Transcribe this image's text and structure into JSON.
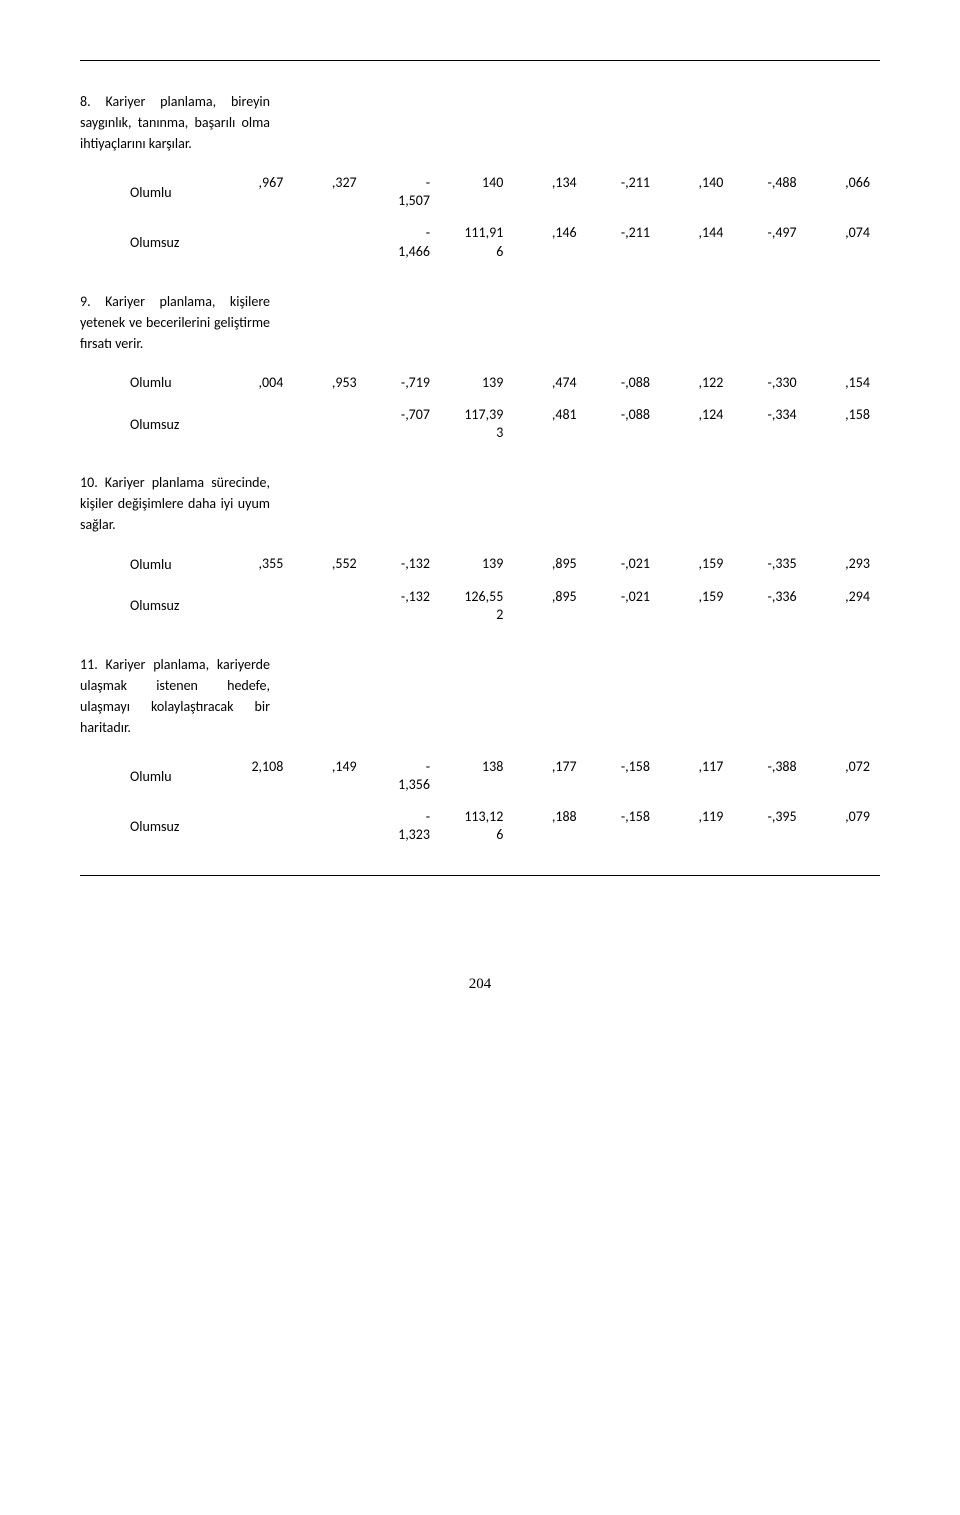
{
  "page_number": "204",
  "labels": {
    "olumlu": "Olumlu",
    "olumsuz": "Olumsuz"
  },
  "sections": [
    {
      "title": "8. Kariyer planlama, bireyin saygınlık, tanınma, başarılı olma ihtiyaçlarını karşılar.",
      "rows": [
        {
          "label": "olumlu",
          "cells": [
            ",967",
            ",327",
            "-\n1,507",
            "140",
            ",134",
            "-,211",
            ",140",
            "-,488",
            ",066"
          ]
        },
        {
          "label": "olumsuz",
          "cells": [
            "",
            "",
            "-\n1,466",
            "111,91\n6",
            ",146",
            "-,211",
            ",144",
            "-,497",
            ",074"
          ]
        }
      ]
    },
    {
      "title": "9. Kariyer planlama, kişilere yetenek ve becerilerini geliştirme fırsatı verir.",
      "rows": [
        {
          "label": "olumlu",
          "cells": [
            ",004",
            ",953",
            "-,719",
            "139",
            ",474",
            "-,088",
            ",122",
            "-,330",
            ",154"
          ]
        },
        {
          "label": "olumsuz",
          "cells": [
            "",
            "",
            "-,707",
            "117,39\n3",
            ",481",
            "-,088",
            ",124",
            "-,334",
            ",158"
          ]
        }
      ]
    },
    {
      "title": "10. Kariyer planlama sürecinde, kişiler değişimlere daha iyi uyum sağlar.",
      "rows": [
        {
          "label": "olumlu",
          "cells": [
            ",355",
            ",552",
            "-,132",
            "139",
            ",895",
            "-,021",
            ",159",
            "-,335",
            ",293"
          ]
        },
        {
          "label": "olumsuz",
          "cells": [
            "",
            "",
            "-,132",
            "126,55\n2",
            ",895",
            "-,021",
            ",159",
            "-,336",
            ",294"
          ]
        }
      ]
    },
    {
      "title": "11. Kariyer planlama, kariyerde ulaşmak istenen hedefe, ulaşmayı kolaylaştıracak bir haritadır.",
      "rows": [
        {
          "label": "olumlu",
          "cells": [
            "2,108",
            ",149",
            "-\n1,356",
            "138",
            ",177",
            "-,158",
            ",117",
            "-,388",
            ",072"
          ]
        },
        {
          "label": "olumsuz",
          "cells": [
            "",
            "",
            "-\n1,323",
            "113,12\n6",
            ",188",
            "-,158",
            ",119",
            "-,395",
            ",079"
          ]
        }
      ]
    }
  ]
}
